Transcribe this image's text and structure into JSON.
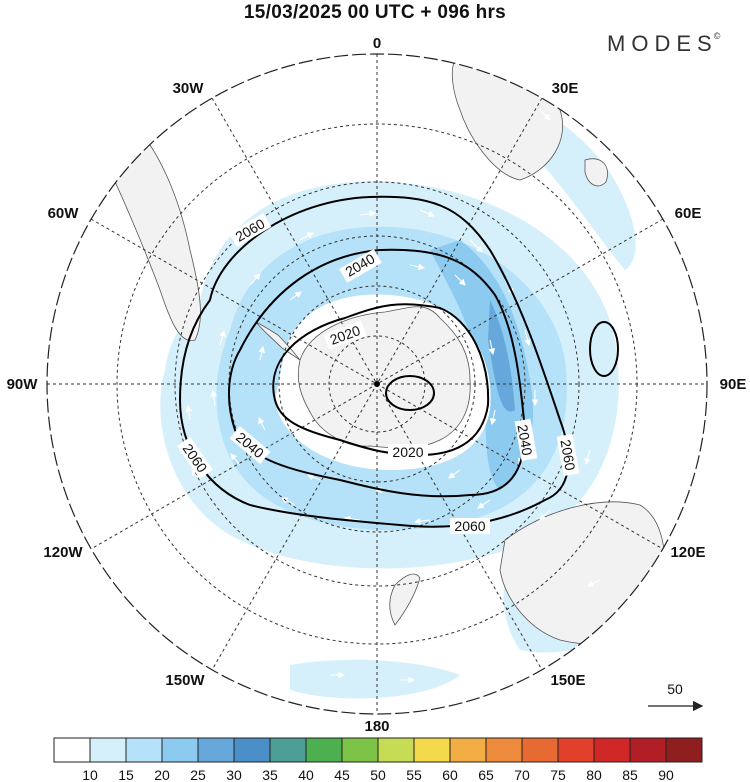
{
  "header": {
    "title": "15/03/2025  00 UTC  + 096 hrs",
    "brand": "MODES",
    "brand_mark": "©"
  },
  "map": {
    "projection": "south polar stereographic",
    "longitude_labels": [
      "0",
      "30E",
      "60E",
      "90E",
      "120E",
      "150E",
      "180",
      "150W",
      "120W",
      "90W",
      "60W",
      "30W"
    ],
    "contour_labels": [
      "2020",
      "2020",
      "2040",
      "2040",
      "2040",
      "2060",
      "2060",
      "2060",
      "2060"
    ],
    "contour_values": [
      2020,
      2040,
      2060
    ],
    "land_color": "#f2f2f2",
    "coast_color": "#555555"
  },
  "vector_reference": {
    "label": "50"
  },
  "colorbar": {
    "tick_labels": [
      "10",
      "15",
      "20",
      "25",
      "30",
      "35",
      "40",
      "45",
      "50",
      "55",
      "60",
      "65",
      "70",
      "75",
      "80",
      "85",
      "90"
    ],
    "colors": [
      "#ffffff",
      "#d6f0fb",
      "#b5e2f8",
      "#8dcaf0",
      "#66a8dc",
      "#4a8fc8",
      "#4c9e96",
      "#4caf50",
      "#7cc348",
      "#c7dc55",
      "#f5d94d",
      "#f2ae45",
      "#ee8a3b",
      "#e86a33",
      "#e1412b",
      "#d02826",
      "#b21e25",
      "#8f1e1e"
    ]
  }
}
